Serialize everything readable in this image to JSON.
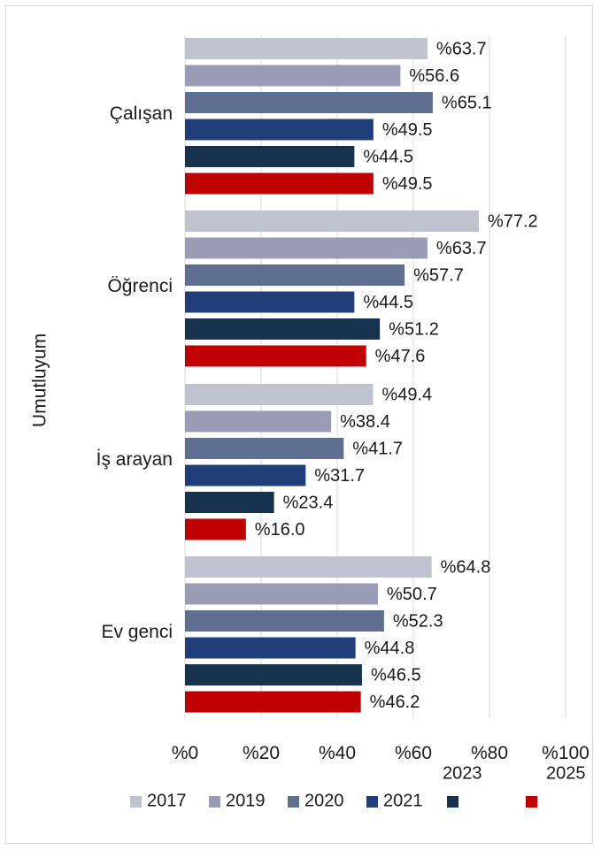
{
  "chart_data": {
    "type": "bar",
    "orientation": "horizontal",
    "ylabel": "Umutluyum",
    "categories": [
      "Çalışan",
      "Öğrenci",
      "İş arayan",
      "Ev genci"
    ],
    "x_ticks": [
      "%0",
      "%20",
      "%40",
      "%60",
      "%80",
      "%100"
    ],
    "xlim": [
      0,
      100
    ],
    "value_prefix": "%",
    "grid": "vertical",
    "legend_position": "bottom",
    "series": [
      {
        "name": "2017",
        "color": "#bfc3d0",
        "values": [
          63.7,
          77.2,
          49.4,
          64.8
        ],
        "labels": [
          "%63.7",
          "%77.2",
          "%49.4",
          "%64.8"
        ]
      },
      {
        "name": "2019",
        "color": "#9a9cb6",
        "values": [
          56.6,
          63.7,
          38.4,
          50.7
        ],
        "labels": [
          "%56.6",
          "%63.7",
          "%38.4",
          "%50.7"
        ]
      },
      {
        "name": "2020",
        "color": "#5f6f92",
        "values": [
          65.1,
          57.7,
          41.7,
          52.3
        ],
        "labels": [
          "%65.1",
          "%57.7",
          "%41.7",
          "%52.3"
        ]
      },
      {
        "name": "2021",
        "color": "#203f7a",
        "values": [
          49.5,
          44.5,
          31.7,
          44.8
        ],
        "labels": [
          "%49.5",
          "%44.5",
          "%31.7",
          "%44.8"
        ]
      },
      {
        "name": "2023",
        "color": "#17324f",
        "values": [
          44.5,
          51.2,
          23.4,
          46.5
        ],
        "labels": [
          "%44.5",
          "%51.2",
          "%23.4",
          "%46.5"
        ]
      },
      {
        "name": "2025",
        "color": "#c00000",
        "values": [
          49.5,
          47.6,
          16.0,
          46.2
        ],
        "labels": [
          "%49.5",
          "%47.6",
          "%16.0",
          "%46.2"
        ]
      }
    ]
  }
}
